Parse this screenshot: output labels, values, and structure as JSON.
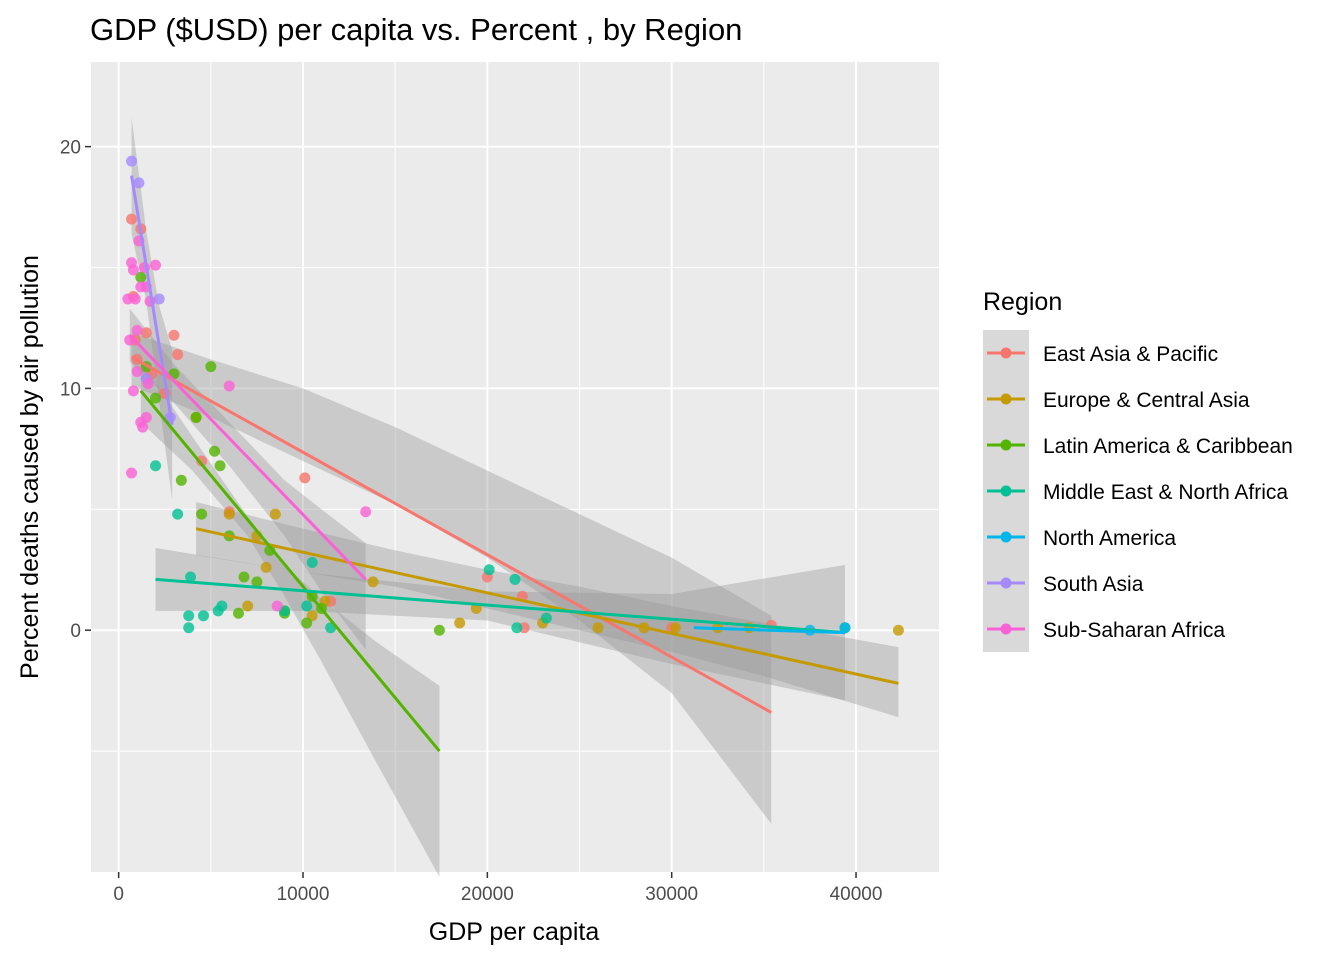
{
  "chart_data": {
    "type": "scatter",
    "title": "GDP ($USD) per capita vs. Percent , by Region",
    "xlabel": "GDP per capita",
    "ylabel": "Percent deaths caused by air pollution",
    "xlim": [
      -1500,
      44500
    ],
    "ylim": [
      -10,
      23.5
    ],
    "x_ticks": [
      0,
      10000,
      20000,
      30000,
      40000
    ],
    "x_tick_labels": [
      "0",
      "10000",
      "20000",
      "30000",
      "40000"
    ],
    "y_ticks": [
      0,
      10,
      20
    ],
    "y_tick_labels": [
      "0",
      "10",
      "20"
    ],
    "grid": true,
    "legend": {
      "title": "Region",
      "position": "right"
    },
    "series": [
      {
        "name": "East Asia & Pacific",
        "color": "#F8766D",
        "points": [
          [
            700,
            17
          ],
          [
            800,
            13.8
          ],
          [
            900,
            12
          ],
          [
            1000,
            11.2
          ],
          [
            1200,
            16.6
          ],
          [
            1500,
            12.3
          ],
          [
            1800,
            10.6
          ],
          [
            2500,
            9.8
          ],
          [
            3000,
            12.2
          ],
          [
            3200,
            11.4
          ],
          [
            4500,
            7
          ],
          [
            6000,
            4.9
          ],
          [
            10100,
            6.3
          ],
          [
            11500,
            1.2
          ],
          [
            20000,
            2.2
          ],
          [
            21900,
            1.4
          ],
          [
            22000,
            0.1
          ],
          [
            30000,
            0.1
          ],
          [
            35400,
            0.2
          ]
        ],
        "fit": [
          [
            700,
            11.3
          ],
          [
            35400,
            -3.4
          ]
        ],
        "band": [
          [
            700,
            12.3,
            10.1
          ],
          [
            5000,
            11.2,
            8.8
          ],
          [
            10000,
            10.0,
            7.0
          ],
          [
            15000,
            8.4,
            5.2
          ],
          [
            20000,
            6.6,
            3.0
          ],
          [
            25000,
            4.8,
            0.4
          ],
          [
            30000,
            3.0,
            -2.6
          ],
          [
            35400,
            0.6,
            -8.0
          ]
        ]
      },
      {
        "name": "Europe & Central Asia",
        "color": "#C49A00",
        "points": [
          [
            4200,
            8.8
          ],
          [
            6000,
            4.8
          ],
          [
            7000,
            1.0
          ],
          [
            7500,
            3.9
          ],
          [
            8000,
            2.6
          ],
          [
            8500,
            4.8
          ],
          [
            9000,
            0.8
          ],
          [
            10500,
            0.6
          ],
          [
            11200,
            1.2
          ],
          [
            13800,
            2.0
          ],
          [
            18500,
            0.3
          ],
          [
            19400,
            0.9
          ],
          [
            23000,
            0.3
          ],
          [
            26000,
            0.1
          ],
          [
            28500,
            0.1
          ],
          [
            30200,
            0.1
          ],
          [
            32500,
            0.1
          ],
          [
            34200,
            0.1
          ],
          [
            42300,
            0
          ]
        ],
        "fit": [
          [
            4200,
            4.2
          ],
          [
            42300,
            -2.2
          ]
        ],
        "band": [
          [
            4200,
            5.3,
            3.1
          ],
          [
            10000,
            4.2,
            2.4
          ],
          [
            15000,
            3.3,
            1.8
          ],
          [
            20000,
            2.5,
            0.9
          ],
          [
            25000,
            1.8,
            0.0
          ],
          [
            30000,
            1.0,
            -0.9
          ],
          [
            35000,
            0.3,
            -1.9
          ],
          [
            42300,
            -0.7,
            -3.6
          ]
        ]
      },
      {
        "name": "Latin America & Caribbean",
        "color": "#53B400",
        "points": [
          [
            1200,
            14.6
          ],
          [
            1500,
            10.9
          ],
          [
            2000,
            9.6
          ],
          [
            3000,
            10.6
          ],
          [
            3400,
            6.2
          ],
          [
            4200,
            8.8
          ],
          [
            4500,
            4.8
          ],
          [
            5000,
            10.9
          ],
          [
            5200,
            7.4
          ],
          [
            5500,
            6.8
          ],
          [
            6000,
            3.9
          ],
          [
            6500,
            0.7
          ],
          [
            6800,
            2.2
          ],
          [
            7500,
            2.0
          ],
          [
            8200,
            3.3
          ],
          [
            9000,
            0.7
          ],
          [
            10200,
            0.3
          ],
          [
            10500,
            1.4
          ],
          [
            11000,
            0.9
          ],
          [
            17400,
            0
          ]
        ],
        "fit": [
          [
            1200,
            9.9
          ],
          [
            17400,
            -5.0
          ]
        ],
        "band": [
          [
            1200,
            11.2,
            8.6
          ],
          [
            4000,
            8.0,
            6.6
          ],
          [
            7000,
            4.7,
            3.9
          ],
          [
            9000,
            2.7,
            1.4
          ],
          [
            11000,
            1.3,
            -1.3
          ],
          [
            14000,
            -0.5,
            -5.5
          ],
          [
            17400,
            -2.3,
            -10.2
          ]
        ]
      },
      {
        "name": "Middle East & North Africa",
        "color": "#00C094",
        "points": [
          [
            2000,
            6.8
          ],
          [
            3200,
            4.8
          ],
          [
            3900,
            2.2
          ],
          [
            3800,
            0.6
          ],
          [
            3800,
            0.1
          ],
          [
            4600,
            0.6
          ],
          [
            5400,
            0.8
          ],
          [
            5600,
            1.0
          ],
          [
            9000,
            0.8
          ],
          [
            10200,
            1.0
          ],
          [
            10500,
            2.8
          ],
          [
            11500,
            0.1
          ],
          [
            20100,
            2.5
          ],
          [
            21500,
            2.1
          ],
          [
            21600,
            0.1
          ],
          [
            23200,
            0.5
          ],
          [
            39400,
            0.1
          ]
        ],
        "fit": [
          [
            2000,
            2.1
          ],
          [
            39400,
            -0.1
          ]
        ],
        "band": [
          [
            2000,
            3.4,
            0.8
          ],
          [
            10000,
            2.4,
            0.8
          ],
          [
            20000,
            1.6,
            0.4
          ],
          [
            30000,
            1.5,
            -1.4
          ],
          [
            39400,
            2.7,
            -2.9
          ]
        ]
      },
      {
        "name": "North America",
        "color": "#00B6EB",
        "points": [
          [
            37500,
            0
          ],
          [
            39400,
            0.1
          ]
        ],
        "fit": [
          [
            31200,
            0.1
          ],
          [
            39400,
            -0.1
          ]
        ],
        "band": []
      },
      {
        "name": "South Asia",
        "color": "#A58AFF",
        "points": [
          [
            700,
            19.4
          ],
          [
            1100,
            18.5
          ],
          [
            1500,
            10.4
          ],
          [
            2200,
            13.7
          ],
          [
            2800,
            8.8
          ]
        ],
        "fit": [
          [
            700,
            18.8
          ],
          [
            2900,
            8.5
          ]
        ],
        "band": [
          [
            700,
            21.2,
            16.4
          ],
          [
            1500,
            16.5,
            13.6
          ],
          [
            2200,
            13.4,
            9.4
          ],
          [
            2900,
            11.6,
            5.4
          ]
        ]
      },
      {
        "name": "Sub-Saharan Africa",
        "color": "#FB61D7",
        "points": [
          [
            500,
            13.7
          ],
          [
            600,
            12
          ],
          [
            700,
            15.2
          ],
          [
            700,
            6.5
          ],
          [
            800,
            14.9
          ],
          [
            800,
            9.9
          ],
          [
            900,
            13.7
          ],
          [
            1000,
            12.4
          ],
          [
            1000,
            10.7
          ],
          [
            1100,
            16.1
          ],
          [
            1200,
            14.2
          ],
          [
            1200,
            8.6
          ],
          [
            1300,
            8.4
          ],
          [
            1400,
            15
          ],
          [
            1500,
            14.2
          ],
          [
            1500,
            8.8
          ],
          [
            1600,
            10.2
          ],
          [
            1700,
            13.6
          ],
          [
            2000,
            15.1
          ],
          [
            6000,
            10.1
          ],
          [
            8600,
            1.0
          ],
          [
            13400,
            4.9
          ]
        ],
        "fit": [
          [
            600,
            12.2
          ],
          [
            13400,
            2.1
          ]
        ],
        "band": [
          [
            600,
            13.3,
            11.1
          ],
          [
            3000,
            11.0,
            9.4
          ],
          [
            6000,
            8.6,
            6.8
          ],
          [
            9000,
            6.2,
            3.9
          ],
          [
            11000,
            5.0,
            1.6
          ],
          [
            13400,
            3.6,
            -0.8
          ]
        ]
      }
    ]
  }
}
